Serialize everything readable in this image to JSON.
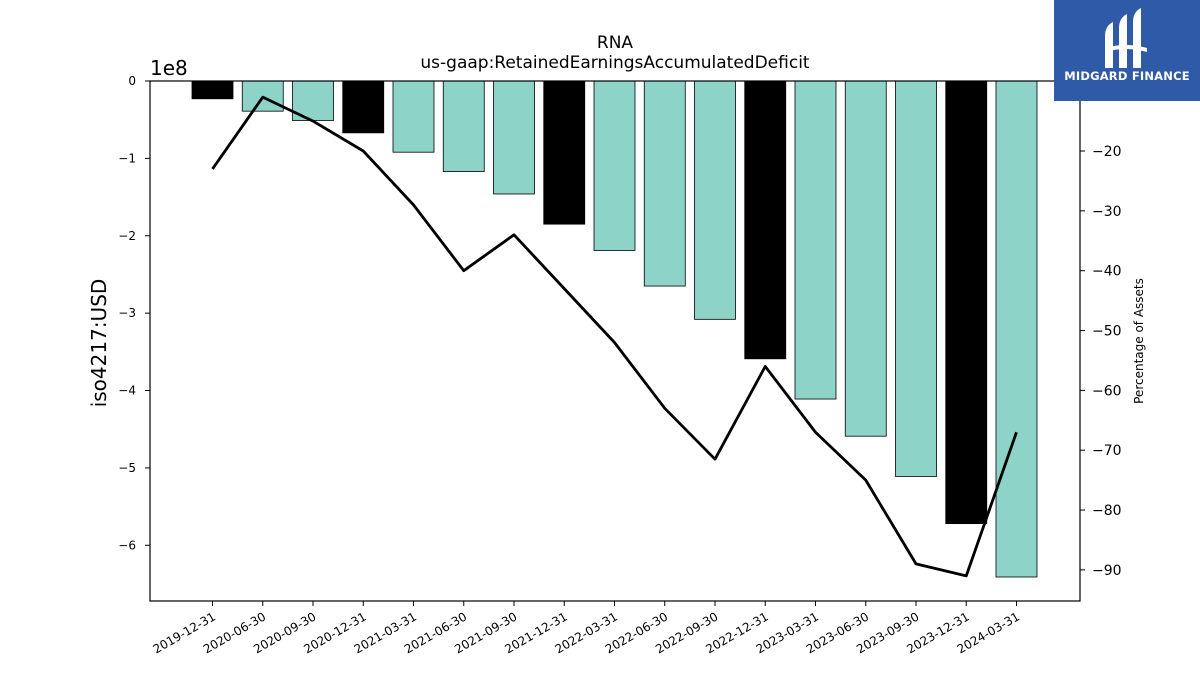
{
  "chart_data": {
    "type": "bar+line",
    "title": "RNA",
    "subtitle": "us-gaap:RetainedEarningsAccumulatedDeficit",
    "ylabel": "iso4217:USD",
    "y_offset_label": "1e8",
    "y2label": "Percentage of Assets",
    "categories": [
      "2019-12-31",
      "2020-06-30",
      "2020-09-30",
      "2020-12-31",
      "2021-03-31",
      "2021-06-30",
      "2021-09-30",
      "2021-12-31",
      "2022-03-31",
      "2022-06-30",
      "2022-09-30",
      "2022-12-31",
      "2023-03-31",
      "2023-06-30",
      "2023-09-30",
      "2023-12-31",
      "2024-03-31"
    ],
    "bar_series": {
      "values": [
        -0.23,
        -0.39,
        -0.51,
        -0.67,
        -0.92,
        -1.17,
        -1.46,
        -1.85,
        -2.19,
        -2.65,
        -3.08,
        -3.59,
        -4.11,
        -4.59,
        -5.11,
        -5.72,
        -6.41
      ],
      "value_scale": 100000000,
      "is_annual": [
        true,
        false,
        false,
        true,
        false,
        false,
        false,
        true,
        false,
        false,
        false,
        true,
        false,
        false,
        false,
        true,
        false
      ],
      "colors": {
        "annual": "#000000",
        "quarterly": "#8dd3c7"
      }
    },
    "line_series": {
      "values": [
        -23,
        -11,
        -15,
        -20,
        -29,
        -40,
        -34,
        -43,
        -52,
        -63,
        -71.5,
        -56,
        -67,
        -75,
        -89,
        -91,
        -67
      ],
      "color": "#000000"
    },
    "ylim": [
      -6.72,
      0
    ],
    "y2lim": [
      -95.2,
      -8.3
    ],
    "yticks": [
      0,
      -1,
      -2,
      -3,
      -4,
      -5,
      -6
    ],
    "ytick_labels": [
      "0",
      "−1",
      "−2",
      "−3",
      "−4",
      "−5",
      "−6"
    ],
    "y2ticks": [
      -10,
      -20,
      -30,
      -40,
      -50,
      -60,
      -70,
      -80,
      -90
    ],
    "y2tick_labels": [
      "−10",
      "−20",
      "−30",
      "−40",
      "−50",
      "−60",
      "−70",
      "−80",
      "−90"
    ],
    "grid": false
  },
  "brand": {
    "name": "MIDGARD FINANCE",
    "color": "#2f5aa8"
  }
}
